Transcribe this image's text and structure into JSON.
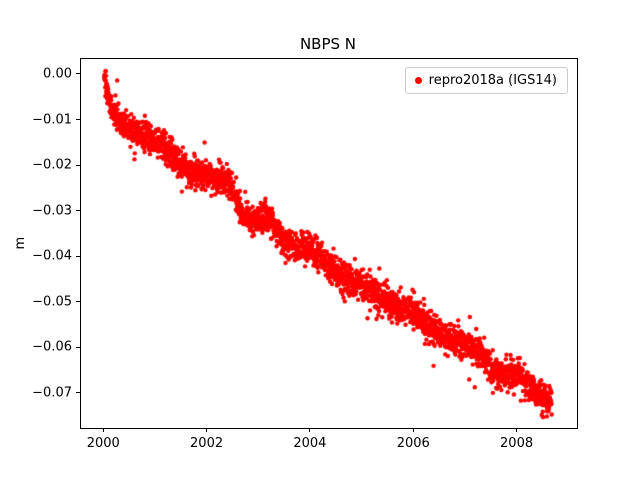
{
  "chart_data": {
    "type": "scatter",
    "title": "NBPS N",
    "xlabel": "",
    "ylabel": "m",
    "xlim": [
      1999.55,
      2009.15
    ],
    "ylim": [
      -0.0775,
      0.0035
    ],
    "grid": false,
    "xticks": [
      {
        "value": 2000,
        "label": "2000"
      },
      {
        "value": 2002,
        "label": "2002"
      },
      {
        "value": 2004,
        "label": "2004"
      },
      {
        "value": 2006,
        "label": "2006"
      },
      {
        "value": 2008,
        "label": "2008"
      }
    ],
    "yticks": [
      {
        "value": 0.0,
        "label": "0.00"
      },
      {
        "value": -0.01,
        "label": "−0.01"
      },
      {
        "value": -0.02,
        "label": "−0.02"
      },
      {
        "value": -0.03,
        "label": "−0.03"
      },
      {
        "value": -0.04,
        "label": "−0.04"
      },
      {
        "value": -0.05,
        "label": "−0.05"
      },
      {
        "value": -0.06,
        "label": "−0.06"
      },
      {
        "value": -0.07,
        "label": "−0.07"
      }
    ],
    "legend": {
      "position": "upper right",
      "entries": [
        {
          "label": "repro2018a (IGS14)",
          "color": "#ff0000",
          "marker": "dot"
        }
      ]
    },
    "series": [
      {
        "name": "repro2018a (IGS14)",
        "color": "#ff0000",
        "marker": "circle",
        "marker_radius_px": 2.2,
        "seed": 42,
        "n_points": 2800,
        "x_start": 2000.0,
        "x_end": 2008.66,
        "noise_std": 0.0016,
        "outlier_fraction": 0.03,
        "outlier_scale": 2.2,
        "trend": [
          [
            2000.0,
            0.0
          ],
          [
            2000.08,
            -0.005
          ],
          [
            2000.2,
            -0.008
          ],
          [
            2000.35,
            -0.011
          ],
          [
            2000.5,
            -0.012
          ],
          [
            2000.7,
            -0.013
          ],
          [
            2001.0,
            -0.0145
          ],
          [
            2001.2,
            -0.016
          ],
          [
            2001.4,
            -0.019
          ],
          [
            2001.6,
            -0.021
          ],
          [
            2001.8,
            -0.022
          ],
          [
            2002.1,
            -0.0225
          ],
          [
            2002.4,
            -0.023
          ],
          [
            2002.55,
            -0.028
          ],
          [
            2002.7,
            -0.031
          ],
          [
            2003.0,
            -0.032
          ],
          [
            2003.2,
            -0.031
          ],
          [
            2003.35,
            -0.034
          ],
          [
            2003.5,
            -0.037
          ],
          [
            2003.7,
            -0.038
          ],
          [
            2004.0,
            -0.0385
          ],
          [
            2004.2,
            -0.04
          ],
          [
            2004.45,
            -0.043
          ],
          [
            2004.6,
            -0.0445
          ],
          [
            2004.8,
            -0.0455
          ],
          [
            2005.0,
            -0.046
          ],
          [
            2005.2,
            -0.0475
          ],
          [
            2005.5,
            -0.05
          ],
          [
            2005.8,
            -0.0515
          ],
          [
            2006.0,
            -0.052
          ],
          [
            2006.2,
            -0.0545
          ],
          [
            2006.5,
            -0.057
          ],
          [
            2006.8,
            -0.0585
          ],
          [
            2007.0,
            -0.059
          ],
          [
            2007.2,
            -0.06
          ],
          [
            2007.45,
            -0.0635
          ],
          [
            2007.6,
            -0.0655
          ],
          [
            2007.8,
            -0.066
          ],
          [
            2008.0,
            -0.066
          ],
          [
            2008.2,
            -0.068
          ],
          [
            2008.4,
            -0.07
          ],
          [
            2008.55,
            -0.0715
          ],
          [
            2008.66,
            -0.072
          ]
        ]
      }
    ]
  }
}
